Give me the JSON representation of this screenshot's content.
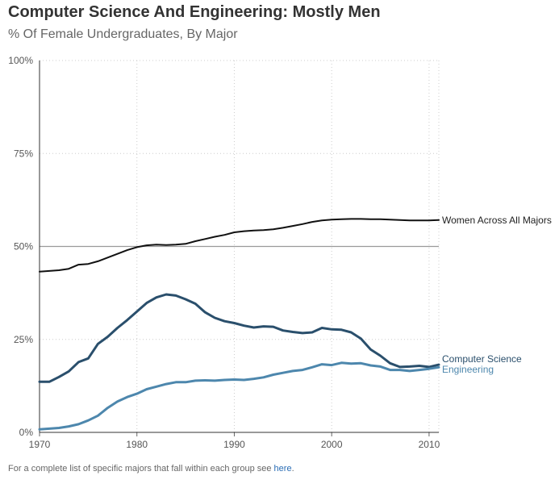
{
  "title": "Computer Science And Engineering: Mostly Men",
  "subtitle": "% Of Female Undergraduates, By Major",
  "footnote": {
    "text": "For a complete list of specific majors that fall within each group see ",
    "link": "here",
    "end": "."
  },
  "chart_data": {
    "type": "line",
    "x": [
      1970,
      1971,
      1972,
      1973,
      1974,
      1975,
      1976,
      1977,
      1978,
      1979,
      1980,
      1981,
      1982,
      1983,
      1984,
      1985,
      1986,
      1987,
      1988,
      1989,
      1990,
      1991,
      1992,
      1993,
      1994,
      1995,
      1996,
      1997,
      1998,
      1999,
      2000,
      2001,
      2002,
      2003,
      2004,
      2005,
      2006,
      2007,
      2008,
      2009,
      2010,
      2011
    ],
    "xlim": [
      1970,
      2011
    ],
    "ylim": [
      0,
      100
    ],
    "xticks": [
      "1970",
      "1980",
      "1990",
      "2000",
      "2010"
    ],
    "yticks": [
      "0%",
      "25%",
      "50%",
      "75%",
      "100%"
    ],
    "reference_line": 50,
    "grid": "dotted vertical and horizontal",
    "series": [
      {
        "name": "Women Across All Majors",
        "color": "#111111",
        "values": [
          43.2,
          43.4,
          43.6,
          44.0,
          45.1,
          45.3,
          46.0,
          47.0,
          48.0,
          49.0,
          49.8,
          50.3,
          50.5,
          50.4,
          50.5,
          50.7,
          51.4,
          52.0,
          52.6,
          53.1,
          53.8,
          54.1,
          54.3,
          54.4,
          54.6,
          55.0,
          55.5,
          56.0,
          56.6,
          57.0,
          57.2,
          57.3,
          57.4,
          57.4,
          57.3,
          57.3,
          57.2,
          57.1,
          57.0,
          57.0,
          57.0,
          57.1
        ]
      },
      {
        "name": "Computer Science",
        "color": "#2a4f6c",
        "values": [
          13.6,
          13.6,
          14.9,
          16.4,
          18.9,
          19.9,
          23.8,
          25.7,
          28.1,
          30.2,
          32.5,
          34.8,
          36.3,
          37.1,
          36.8,
          35.8,
          34.6,
          32.3,
          30.8,
          29.9,
          29.4,
          28.7,
          28.2,
          28.5,
          28.4,
          27.4,
          27.0,
          26.7,
          26.9,
          28.1,
          27.7,
          27.6,
          26.9,
          25.2,
          22.3,
          20.6,
          18.6,
          17.6,
          17.7,
          17.9,
          17.6,
          18.2
        ]
      },
      {
        "name": "Engineering",
        "color": "#4d87ad",
        "values": [
          0.8,
          1.0,
          1.2,
          1.6,
          2.2,
          3.2,
          4.5,
          6.6,
          8.3,
          9.5,
          10.4,
          11.6,
          12.3,
          13.0,
          13.5,
          13.5,
          13.9,
          14.0,
          13.9,
          14.1,
          14.2,
          14.1,
          14.4,
          14.8,
          15.5,
          16.0,
          16.5,
          16.8,
          17.5,
          18.3,
          18.1,
          18.7,
          18.5,
          18.6,
          18.0,
          17.7,
          16.8,
          16.8,
          16.5,
          16.8,
          17.1,
          17.5
        ]
      }
    ]
  }
}
